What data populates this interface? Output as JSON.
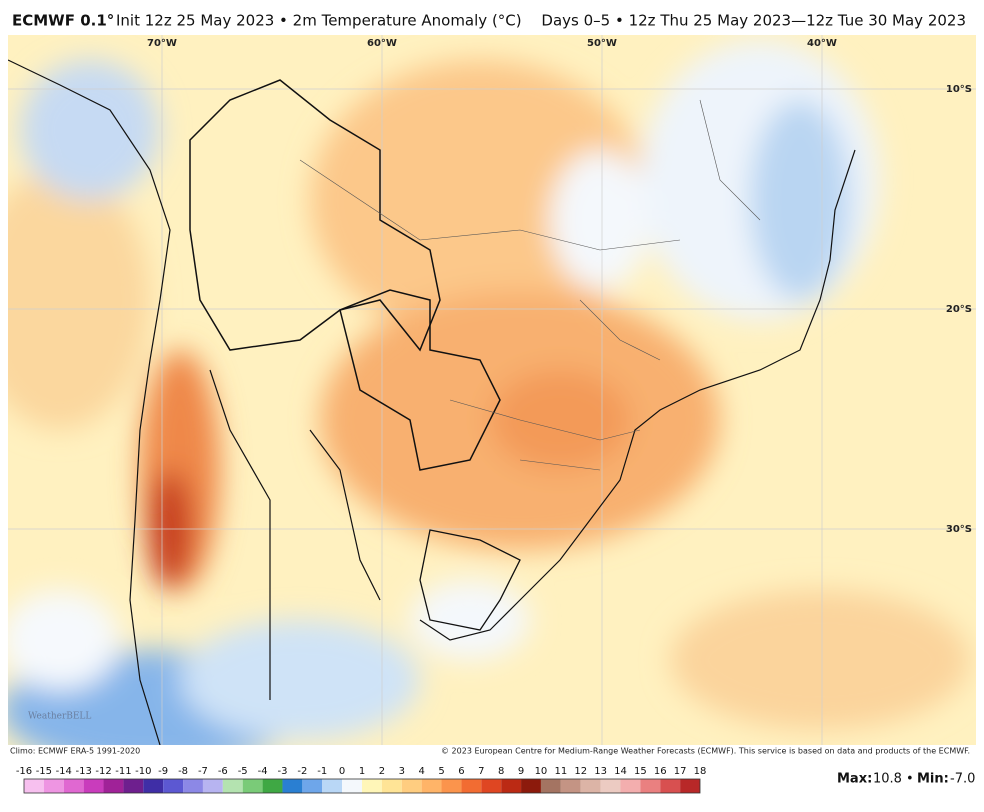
{
  "header": {
    "model": "ECMWF 0.1°",
    "description": "Init 12z 25 May 2023 • 2m Temperature Anomaly (°C)",
    "valid": "Days 0–5 • 12z Thu 25 May 2023—12z Tue 30 May 2023"
  },
  "map": {
    "lon_labels": [
      "70°W",
      "60°W",
      "50°W",
      "40°W"
    ],
    "lat_labels": [
      "10°S",
      "20°S",
      "30°S"
    ],
    "watermark": "WeatherBELL"
  },
  "footer": {
    "climo": "Climo: ECMWF ERA-5 1991-2020",
    "copyright": "© 2023 European Centre for Medium-Range Weather Forecasts (ECMWF). This service is based on data and products of the ECMWF.",
    "max_label": "Max:",
    "max": "10.8",
    "separator": "•",
    "min_label": "Min:",
    "min": "-7.0"
  },
  "colorbar": {
    "ticks": [
      -16,
      -15,
      -14,
      -13,
      -12,
      -11,
      -10,
      -9,
      -8,
      -7,
      -6,
      -5,
      -4,
      -3,
      -2,
      -1,
      0,
      1,
      2,
      3,
      4,
      5,
      6,
      7,
      8,
      9,
      10,
      11,
      12,
      13,
      14,
      15,
      16,
      17,
      18
    ],
    "colors": [
      "#f7c0ef",
      "#ee95e2",
      "#e068d1",
      "#c93cbc",
      "#a02298",
      "#6e1f8e",
      "#3f2ea6",
      "#5c58d2",
      "#8c88e6",
      "#b7b4f1",
      "#b4e3b0",
      "#7acb78",
      "#3fa844",
      "#2a7fd2",
      "#6ea6ea",
      "#b9d7f6",
      "#f4f8fc",
      "#fff6b8",
      "#ffe496",
      "#ffcd80",
      "#ffb468",
      "#fb944c",
      "#f26c32",
      "#df4622",
      "#bb2a14",
      "#8c1a0c",
      "#a47462",
      "#c49484",
      "#dcb4a6",
      "#eccbc2",
      "#f3aeae",
      "#ea8080",
      "#d85050",
      "#b82828"
    ]
  }
}
